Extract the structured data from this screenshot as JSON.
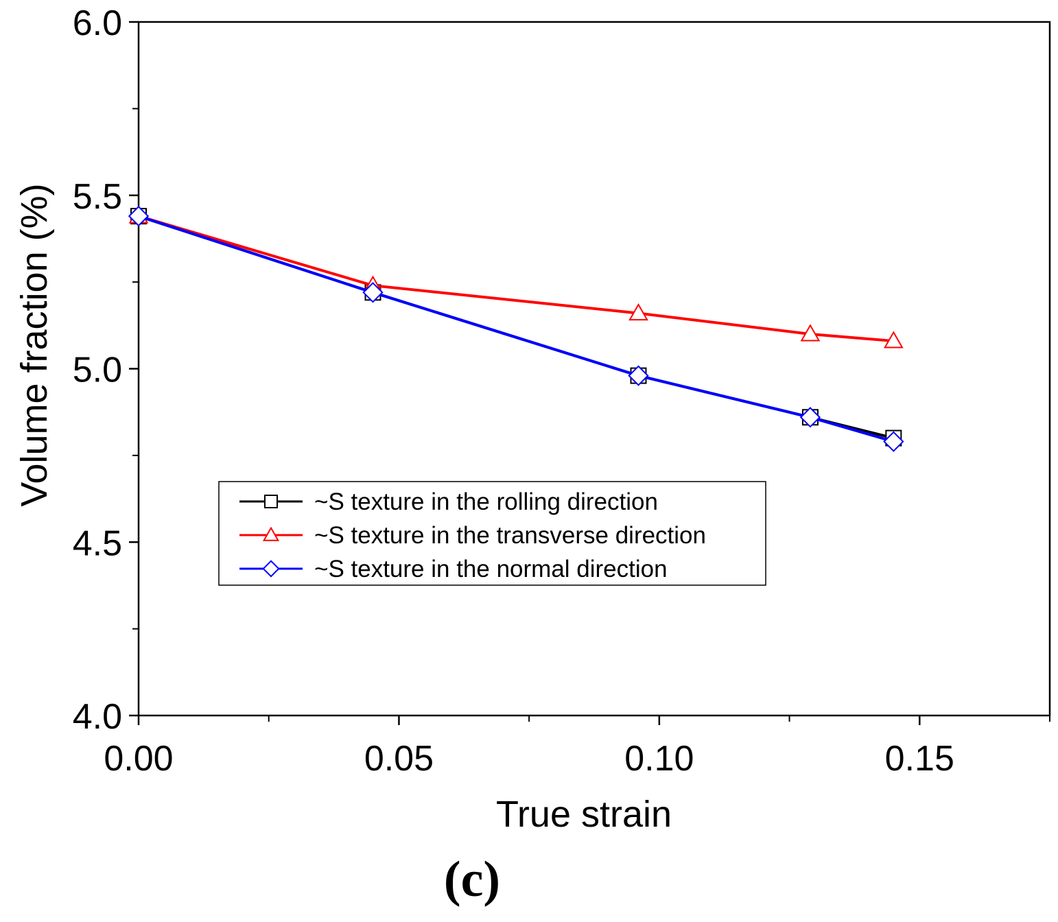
{
  "chart_data": {
    "type": "line",
    "title": "",
    "xlabel": "True strain",
    "ylabel": "Volume fraction (%)",
    "xlim": [
      0.0,
      0.175
    ],
    "ylim": [
      4.0,
      6.0
    ],
    "x_ticks": [
      "0.00",
      "0.05",
      "0.10",
      "0.15"
    ],
    "x_tick_values": [
      0.0,
      0.05,
      0.1,
      0.15
    ],
    "x_minor_tick_values": [
      0.025,
      0.075,
      0.125,
      0.175
    ],
    "y_ticks": [
      "4.0",
      "4.5",
      "5.0",
      "5.5",
      "6.0"
    ],
    "y_tick_values": [
      4.0,
      4.5,
      5.0,
      5.5,
      6.0
    ],
    "y_minor_tick_values": [
      4.25,
      4.75,
      5.25,
      5.75
    ],
    "grid": false,
    "legend_position": "center-left",
    "series": [
      {
        "name": "~S texture in the rolling direction",
        "color": "#000000",
        "marker": "square",
        "x": [
          0.0,
          0.045,
          0.096,
          0.129,
          0.145
        ],
        "y": [
          5.44,
          5.22,
          4.98,
          4.86,
          4.8
        ]
      },
      {
        "name": "~S texture in the transverse direction",
        "color": "#ff0000",
        "marker": "triangle",
        "x": [
          0.0,
          0.045,
          0.096,
          0.129,
          0.145
        ],
        "y": [
          5.44,
          5.24,
          5.16,
          5.1,
          5.08
        ]
      },
      {
        "name": "~S texture in the normal direction",
        "color": "#0000ff",
        "marker": "diamond",
        "x": [
          0.0,
          0.045,
          0.096,
          0.129,
          0.145
        ],
        "y": [
          5.44,
          5.22,
          4.98,
          4.86,
          4.79
        ]
      }
    ],
    "panel_label": "(c)"
  }
}
